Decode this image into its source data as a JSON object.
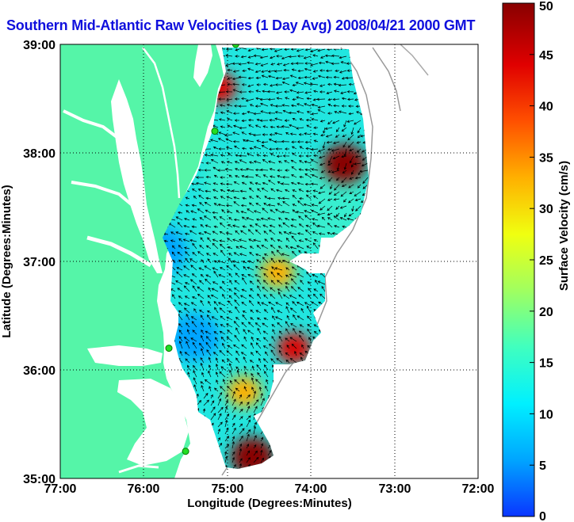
{
  "map": {
    "title": "Southern Mid-Atlantic Raw Velocities (1 Day Avg) 2008/04/21 2000 GMT",
    "xlabel": "Longitude (Degrees:Minutes)",
    "ylabel": "Latitude (Degrees:Minutes)",
    "x_ticks": [
      "77:00",
      "76:00",
      "75:00",
      "74:00",
      "73:00",
      "72:00"
    ],
    "y_ticks": [
      "39:00",
      "38:00",
      "37:00",
      "36:00",
      "35:00"
    ],
    "lon_range": [
      -77,
      -72
    ],
    "lat_range": [
      35,
      39
    ],
    "land_color": "#55f5a8",
    "station_color": "#22dd22"
  },
  "colorbar": {
    "label": "Surface Velocity (cm/s)",
    "ticks": [
      "50",
      "45",
      "40",
      "35",
      "30",
      "25",
      "20",
      "15",
      "10",
      "5",
      "0"
    ],
    "range": [
      0,
      50
    ],
    "colors": [
      "#0a35ff",
      "#00a5ff",
      "#00f0ff",
      "#40ffbf",
      "#a0ff60",
      "#f0ff10",
      "#ffb000",
      "#ff5000",
      "#e00000",
      "#880000"
    ]
  },
  "stations": [
    {
      "lon": -74.9,
      "lat": 39.0
    },
    {
      "lon": -75.15,
      "lat": 38.2
    },
    {
      "lon": -75.7,
      "lat": 36.2
    },
    {
      "lon": -75.5,
      "lat": 35.25
    }
  ],
  "speed_hotspots": [
    {
      "lon": -73.6,
      "lat": 37.9,
      "speed": 48
    },
    {
      "lon": -74.7,
      "lat": 35.2,
      "speed": 49
    },
    {
      "lon": -74.2,
      "lat": 36.2,
      "speed": 40
    },
    {
      "lon": -75.1,
      "lat": 38.6,
      "speed": 40
    },
    {
      "lon": -74.4,
      "lat": 36.9,
      "speed": 33
    },
    {
      "lon": -75.8,
      "lat": 37.1,
      "speed": 5
    },
    {
      "lon": -75.4,
      "lat": 36.3,
      "speed": 7
    },
    {
      "lon": -74.8,
      "lat": 35.8,
      "speed": 30
    }
  ]
}
